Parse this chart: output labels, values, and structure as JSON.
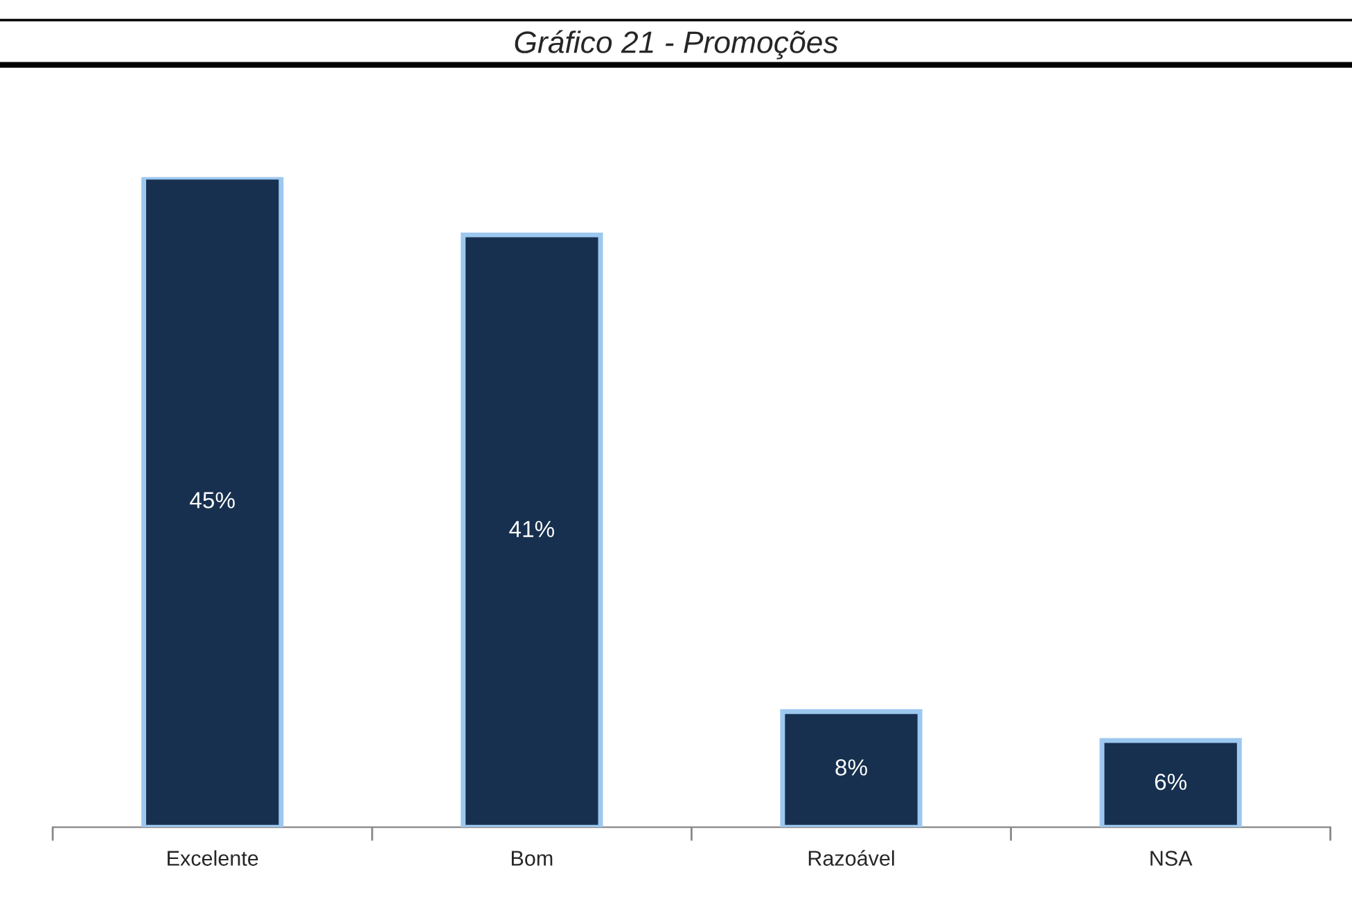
{
  "chart_data": {
    "type": "bar",
    "title": "Gráfico 21 - Promoções",
    "categories": [
      "Excelente",
      "Bom",
      "Razoável",
      "NSA"
    ],
    "values": [
      45,
      41,
      8,
      6
    ],
    "value_labels": [
      "45%",
      "41%",
      "8%",
      "6%"
    ],
    "color": "#17304f",
    "tick_labels": "x",
    "grid": false,
    "legend": false
  }
}
